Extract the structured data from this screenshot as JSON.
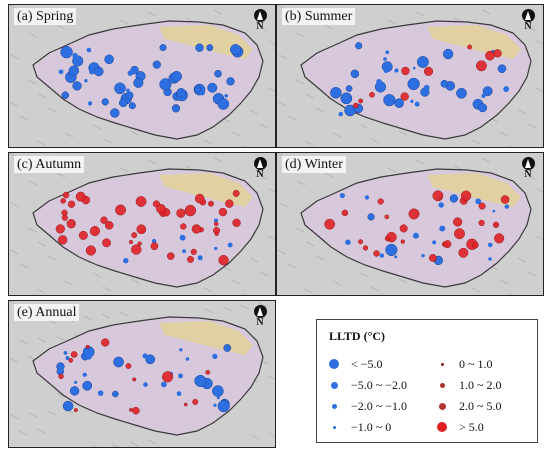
{
  "panels": [
    {
      "id": "spring",
      "label": "(a) Spring"
    },
    {
      "id": "summer",
      "label": "(b) Summer"
    },
    {
      "id": "autumn",
      "label": "(c) Autumn"
    },
    {
      "id": "winter",
      "label": "(d) Winter"
    },
    {
      "id": "annual",
      "label": "(e) Annual"
    }
  ],
  "north_arrow": "N",
  "legend": {
    "title": "LLTD (°C)",
    "items": [
      {
        "label": "< −5.0",
        "color": "#2d6fe0",
        "size": 10
      },
      {
        "label": "−5.0 ~ −2.0",
        "color": "#2d6fe0",
        "size": 7
      },
      {
        "label": "−2.0 ~ −1.0",
        "color": "#2d6fe0",
        "size": 5
      },
      {
        "label": "−1.0 ~ 0",
        "color": "#2d6fe0",
        "size": 3
      },
      {
        "label": "0 ~ 1.0",
        "color": "#c0392b",
        "size": 3
      },
      {
        "label": "1.0 ~ 2.0",
        "color": "#c0392b",
        "size": 5
      },
      {
        "label": "2.0 ~ 5.0",
        "color": "#c0392b",
        "size": 7
      },
      {
        "label": "> 5.0",
        "color": "#e02020",
        "size": 10
      }
    ]
  },
  "colors": {
    "negative": "#2d6fe0",
    "positive": "#e0262b",
    "plateau": "#d8c9dc",
    "terrain": "#cfcfcf"
  }
}
